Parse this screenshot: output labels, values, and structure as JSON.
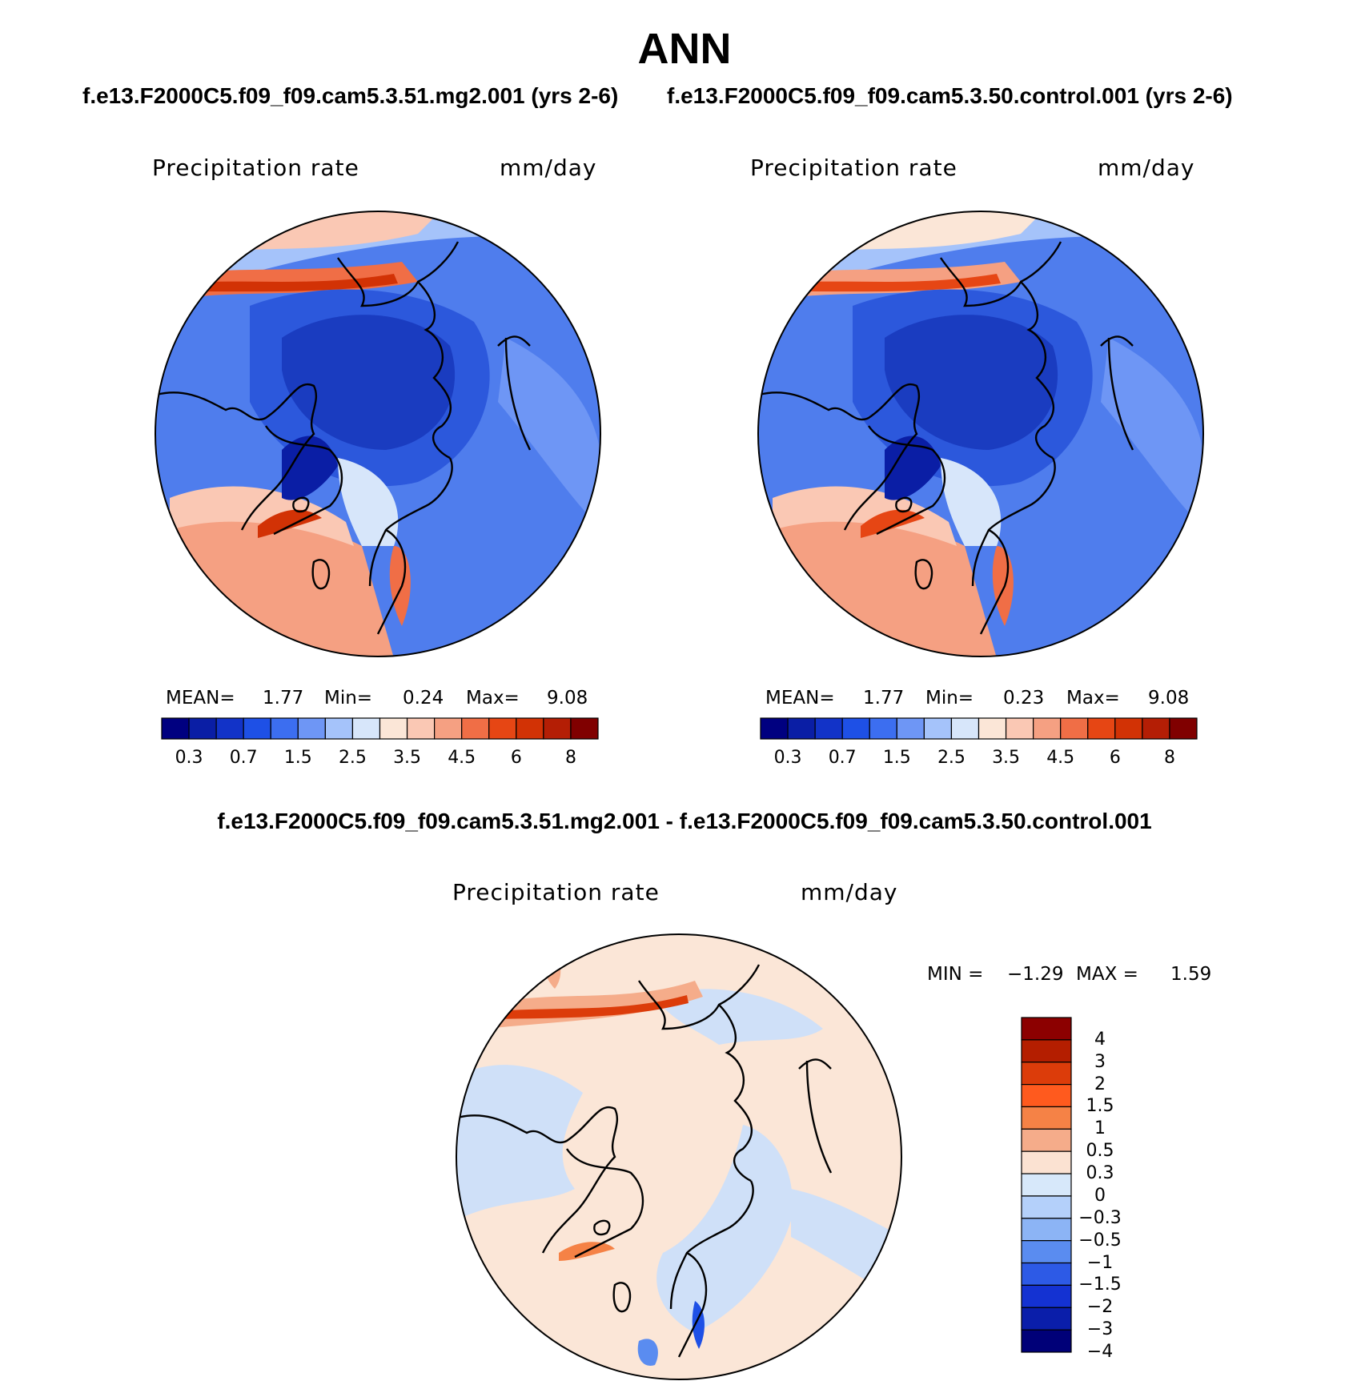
{
  "title": "ANN",
  "panels": [
    {
      "case_title": "f.e13.F2000C5.f09_f09.cam5.3.51.mg2.001 (yrs 2-6)",
      "variable": "Precipitation  rate",
      "units": "mm/day",
      "stats": {
        "mean_label": "MEAN=",
        "mean": "1.77",
        "min_label": "Min=",
        "min": "0.24",
        "max_label": "Max=",
        "max": "9.08"
      }
    },
    {
      "case_title": "f.e13.F2000C5.f09_f09.cam5.3.50.control.001 (yrs 2-6)",
      "variable": "Precipitation  rate",
      "units": "mm/day",
      "stats": {
        "mean_label": "MEAN=",
        "mean": "1.77",
        "min_label": "Min=",
        "min": "0.23",
        "max_label": "Max=",
        "max": "9.08"
      }
    },
    {
      "case_title": "f.e13.F2000C5.f09_f09.cam5.3.51.mg2.001 - f.e13.F2000C5.f09_f09.cam5.3.50.control.001",
      "variable": "Precipitation  rate",
      "units": "mm/day",
      "stats": {
        "min_label": "MIN =",
        "min": "−1.29",
        "max_label": "MAX =",
        "max": "1.59"
      }
    }
  ],
  "colorbar_abs": {
    "colors": [
      "#000080",
      "#0a1ea5",
      "#1233c8",
      "#1e50e6",
      "#3c6ef0",
      "#6e96f5",
      "#a5c3fa",
      "#d7e6fa",
      "#fbe6d7",
      "#fac8b4",
      "#f5a082",
      "#f06e46",
      "#e64614",
      "#d23205",
      "#b41e05",
      "#800000"
    ],
    "tick_labels": [
      "0.3",
      "0.7",
      "1.5",
      "2.5",
      "3.5",
      "4.5",
      "6",
      "8"
    ]
  },
  "colorbar_diff": {
    "colors": [
      "#8c0000",
      "#b41e00",
      "#dc3c0a",
      "#ff5a1e",
      "#f58246",
      "#f5ac8a",
      "#fbe2d2",
      "#d7e8fa",
      "#b4d0fa",
      "#8cb4f5",
      "#5a8cf0",
      "#2d5ae6",
      "#1432d2",
      "#0a1eaa",
      "#000078"
    ],
    "tick_labels": [
      "4",
      "3",
      "2",
      "1.5",
      "1",
      "0.5",
      "0.3",
      "0",
      "−0.3",
      "−0.5",
      "−1",
      "−1.5",
      "−2",
      "−3",
      "−4"
    ]
  },
  "map_colors": {
    "ocean_deep": "#2c58dc",
    "ocean_mid": "#4f7ded",
    "polar_core": "#1a3cc0",
    "warm_band": "#f5a082",
    "storm_track": "#d23205",
    "diff_base": "#fbe6d7",
    "diff_blue": "#cfe0f8",
    "diff_red": "#f0906a"
  }
}
